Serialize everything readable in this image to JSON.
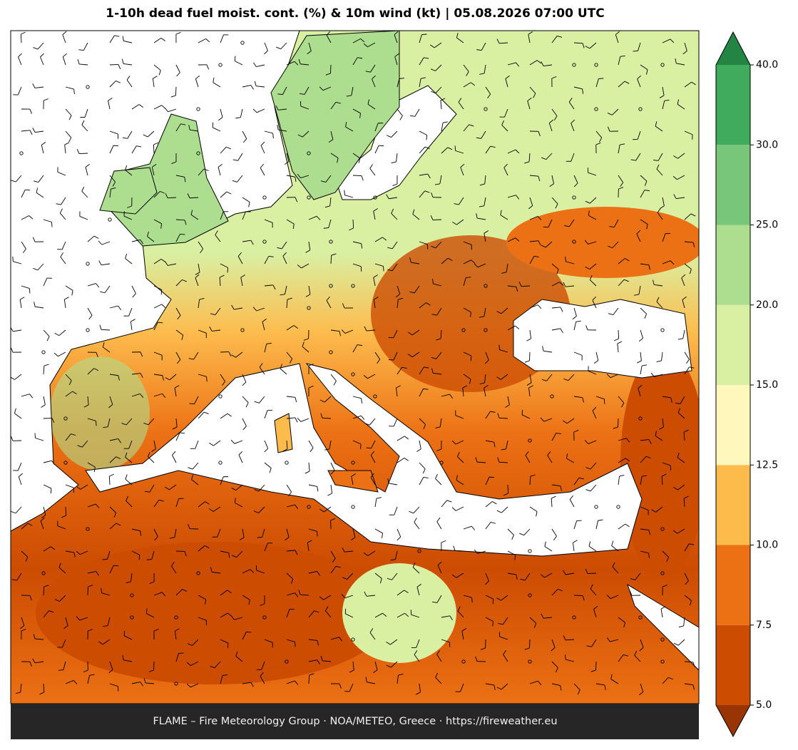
{
  "title": "1-10h dead fuel moist. cont. (%) & 10m wind (kt)  |  05.08.2026 07:00 UTC",
  "footer": "FLAME – Fire Meteorology Group · NOA/METEO, Greece · https://fireweather.eu",
  "colorbar": {
    "ticks": [
      {
        "value": 5,
        "label": "5.0"
      },
      {
        "value": 7.5,
        "label": "7.5"
      },
      {
        "value": 10,
        "label": "10.0"
      },
      {
        "value": 12.5,
        "label": "12.5"
      },
      {
        "value": 15,
        "label": "15.0"
      },
      {
        "value": 20,
        "label": "20.0"
      },
      {
        "value": 25,
        "label": "25.0"
      },
      {
        "value": 30,
        "label": "30.0"
      },
      {
        "value": 40,
        "label": "40.0"
      }
    ],
    "colors": [
      "#cc4c02",
      "#ec7014",
      "#fdbb4c",
      "#fff7bc",
      "#d9f0a3",
      "#addd8e",
      "#78c679",
      "#41ab5d"
    ],
    "under_color": "#993404",
    "over_color": "#238443"
  }
}
